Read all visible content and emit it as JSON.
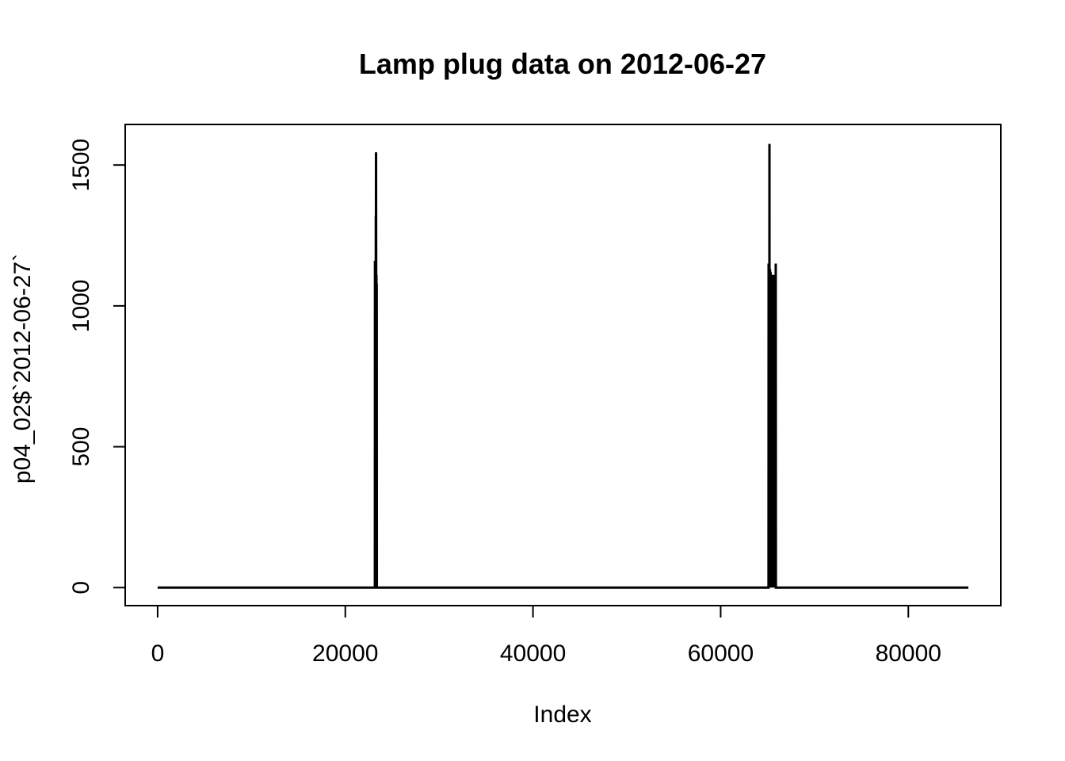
{
  "chart_data": {
    "type": "line",
    "title": "Lamp plug data on 2012-06-27",
    "xlabel": "Index",
    "ylabel": "p04_02$`2012-06-27`",
    "xlim": [
      -3456,
      89856
    ],
    "ylim": [
      -64,
      1644
    ],
    "x_ticks": [
      0,
      20000,
      40000,
      60000,
      80000
    ],
    "y_ticks": [
      0,
      500,
      1000,
      1500
    ],
    "grid": false,
    "series": [
      {
        "color": "#000000",
        "points": [
          [
            1,
            0
          ],
          [
            23150,
            0
          ],
          [
            23160,
            1160
          ],
          [
            23170,
            0
          ],
          [
            23240,
            0
          ],
          [
            23250,
            1320
          ],
          [
            23262,
            1100
          ],
          [
            23275,
            1545
          ],
          [
            23290,
            1050
          ],
          [
            23305,
            0
          ],
          [
            23315,
            1110
          ],
          [
            23330,
            0
          ],
          [
            23345,
            1080
          ],
          [
            23360,
            0
          ],
          [
            23400,
            0
          ],
          [
            65100,
            0
          ],
          [
            65110,
            1150
          ],
          [
            65130,
            0
          ],
          [
            65165,
            1140
          ],
          [
            65185,
            0
          ],
          [
            65200,
            1575
          ],
          [
            65215,
            0
          ],
          [
            65260,
            1130
          ],
          [
            65280,
            0
          ],
          [
            65330,
            1120
          ],
          [
            65350,
            0
          ],
          [
            65480,
            1110
          ],
          [
            65500,
            0
          ],
          [
            65580,
            1100
          ],
          [
            65600,
            0
          ],
          [
            65650,
            1110
          ],
          [
            65665,
            930
          ],
          [
            65680,
            0
          ],
          [
            65760,
            1100
          ],
          [
            65780,
            0
          ],
          [
            65870,
            1150
          ],
          [
            65885,
            0
          ],
          [
            66000,
            0
          ],
          [
            86400,
            0
          ]
        ]
      }
    ]
  }
}
